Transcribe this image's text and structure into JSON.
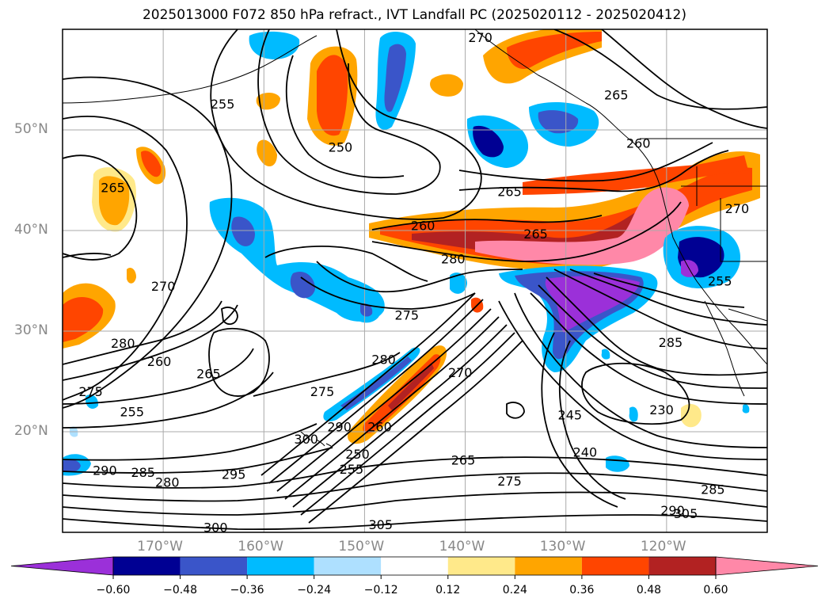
{
  "title": "2025013000 F072 850 hPa refract., IVT Landfall PC (2025020112 - 2025020412)",
  "map": {
    "projection": "equirectangular",
    "lon_range": [
      -180,
      -110
    ],
    "lat_range": [
      10,
      60
    ],
    "lat_ticks": [
      {
        "lat": 50,
        "label": "50°N"
      },
      {
        "lat": 40,
        "label": "40°N"
      },
      {
        "lat": 30,
        "label": "30°N"
      },
      {
        "lat": 20,
        "label": "20°N"
      }
    ],
    "lon_ticks": [
      {
        "lon": -170,
        "label": "170°W"
      },
      {
        "lon": -160,
        "label": "160°W"
      },
      {
        "lon": -150,
        "label": "150°W"
      },
      {
        "lon": -140,
        "label": "140°W"
      },
      {
        "lon": -130,
        "label": "130°W"
      },
      {
        "lon": -120,
        "label": "120°W"
      }
    ],
    "gridlines": true,
    "contour_color": "#000000",
    "tick_label_color": "#888888"
  },
  "colorbar": {
    "orientation": "horizontal",
    "extend": "both",
    "colors": [
      "#9b30d9",
      "#000093",
      "#3a55c9",
      "#00bbff",
      "#aee0ff",
      "#ffffff",
      "#ffe98a",
      "#ffa500",
      "#ff4500",
      "#b22222",
      "#ff88a8"
    ],
    "ticks": [
      "−0.60",
      "−0.48",
      "−0.36",
      "−0.24",
      "−0.12",
      "0.12",
      "0.24",
      "0.36",
      "0.48",
      "0.60"
    ]
  },
  "contour_labels": [
    {
      "text": "270",
      "lon": -138.5,
      "lat": 59.2
    },
    {
      "text": "255",
      "lon": -164.1,
      "lat": 52.6
    },
    {
      "text": "265",
      "lon": -125.0,
      "lat": 53.5
    },
    {
      "text": "250",
      "lon": -152.4,
      "lat": 48.3
    },
    {
      "text": "260",
      "lon": -122.8,
      "lat": 48.7
    },
    {
      "text": "265",
      "lon": -175.0,
      "lat": 44.3
    },
    {
      "text": "265",
      "lon": -135.6,
      "lat": 43.9
    },
    {
      "text": "270",
      "lon": -113.0,
      "lat": 42.2
    },
    {
      "text": "260",
      "lon": -144.2,
      "lat": 40.5
    },
    {
      "text": "265",
      "lon": -133.0,
      "lat": 39.7
    },
    {
      "text": "280",
      "lon": -141.2,
      "lat": 37.2
    },
    {
      "text": "255",
      "lon": -114.7,
      "lat": 35.0
    },
    {
      "text": "270",
      "lon": -170.0,
      "lat": 34.5
    },
    {
      "text": "275",
      "lon": -145.8,
      "lat": 31.6
    },
    {
      "text": "280",
      "lon": -174.0,
      "lat": 28.8
    },
    {
      "text": "285",
      "lon": -119.6,
      "lat": 28.9
    },
    {
      "text": "280",
      "lon": -148.1,
      "lat": 27.2
    },
    {
      "text": "260",
      "lon": -170.4,
      "lat": 27.0
    },
    {
      "text": "270",
      "lon": -140.5,
      "lat": 25.9
    },
    {
      "text": "265",
      "lon": -165.5,
      "lat": 25.8
    },
    {
      "text": "275",
      "lon": -154.2,
      "lat": 24.0
    },
    {
      "text": "275",
      "lon": -177.2,
      "lat": 24.0
    },
    {
      "text": "230",
      "lon": -120.5,
      "lat": 22.2
    },
    {
      "text": "255",
      "lon": -173.1,
      "lat": 22.0
    },
    {
      "text": "245",
      "lon": -129.6,
      "lat": 21.7
    },
    {
      "text": "260",
      "lon": -148.5,
      "lat": 20.5
    },
    {
      "text": "290",
      "lon": -152.5,
      "lat": 20.5
    },
    {
      "text": "300",
      "lon": -155.8,
      "lat": 19.3
    },
    {
      "text": "240",
      "lon": -128.1,
      "lat": 18.0
    },
    {
      "text": "250",
      "lon": -150.7,
      "lat": 17.8
    },
    {
      "text": "265",
      "lon": -140.2,
      "lat": 17.2
    },
    {
      "text": "290",
      "lon": -175.8,
      "lat": 16.2
    },
    {
      "text": "285",
      "lon": -172.0,
      "lat": 16.0
    },
    {
      "text": "255",
      "lon": -151.3,
      "lat": 16.3
    },
    {
      "text": "295",
      "lon": -163.0,
      "lat": 15.8
    },
    {
      "text": "275",
      "lon": -135.6,
      "lat": 15.1
    },
    {
      "text": "280",
      "lon": -169.6,
      "lat": 15.0
    },
    {
      "text": "285",
      "lon": -115.4,
      "lat": 14.3
    },
    {
      "text": "290",
      "lon": -119.4,
      "lat": 12.2
    },
    {
      "text": "305",
      "lon": -118.1,
      "lat": 11.9
    },
    {
      "text": "300",
      "lon": -164.8,
      "lat": 10.5
    },
    {
      "text": "305",
      "lon": -148.4,
      "lat": 10.8
    }
  ]
}
